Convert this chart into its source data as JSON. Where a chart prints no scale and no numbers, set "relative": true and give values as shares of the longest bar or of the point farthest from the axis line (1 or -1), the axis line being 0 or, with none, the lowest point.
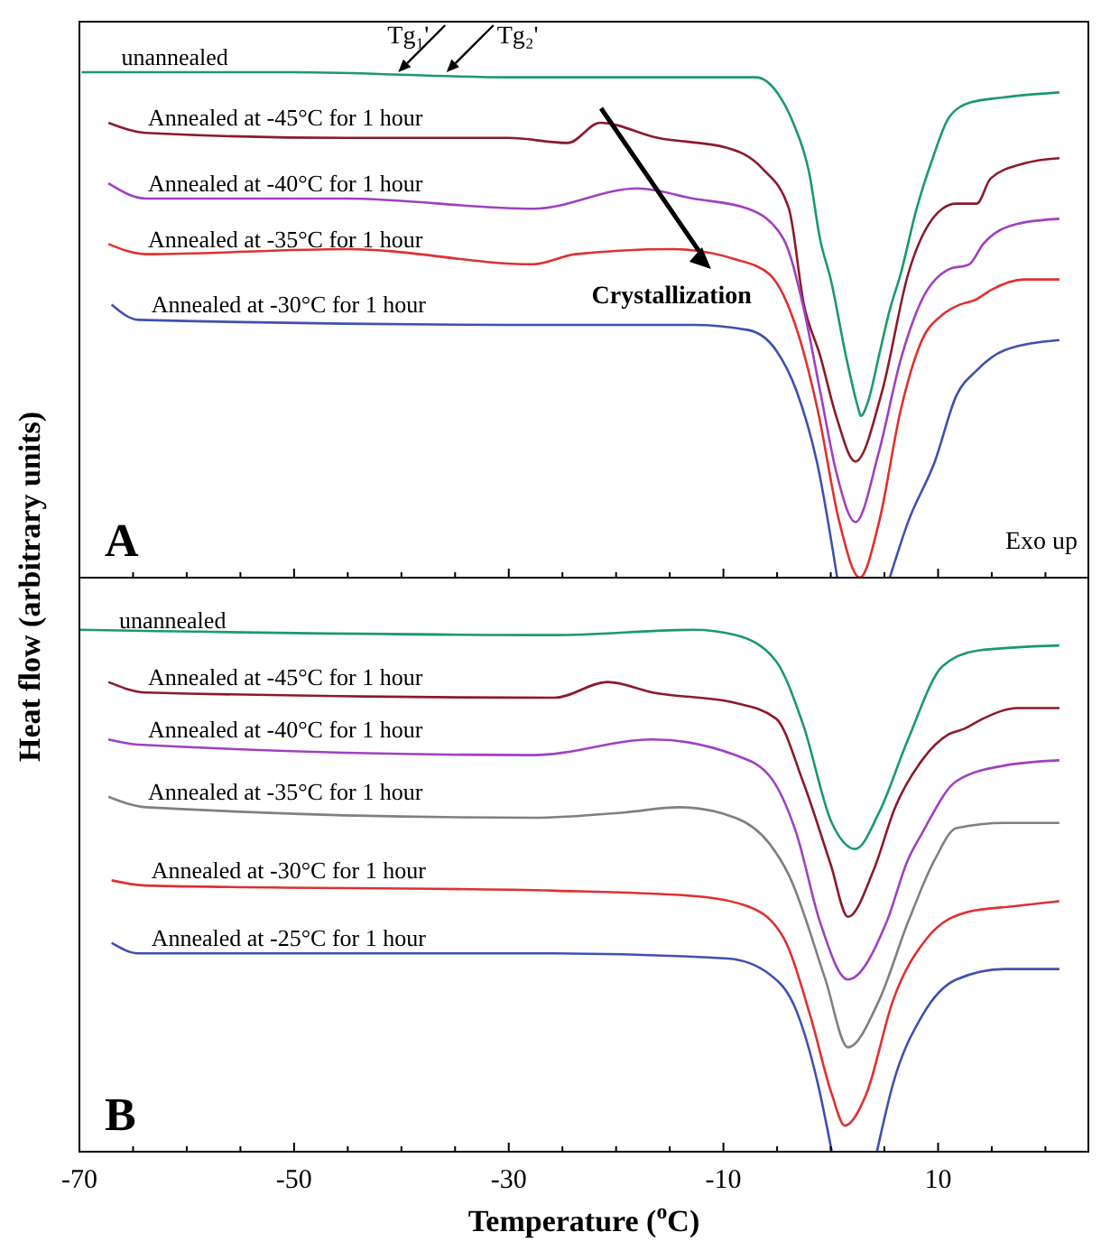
{
  "chart_data": [
    {
      "type": "line",
      "relative": true,
      "ylabel": "Heat flow (arbitrary units)",
      "xlim": [
        -70,
        24
      ],
      "xticks": [
        -70,
        {
          "value": -65,
          "label": null
        },
        {
          "value": -60,
          "label": null
        },
        {
          "value": -55,
          "label": null
        },
        {
          "value": -50,
          "label": null
        },
        {
          "value": -45,
          "label": null
        },
        {
          "value": -40,
          "label": null
        },
        {
          "value": -35,
          "label": null
        },
        {
          "value": -30,
          "label": null
        },
        {
          "value": -25,
          "label": null
        },
        {
          "value": -20,
          "label": null
        },
        {
          "value": -15,
          "label": null
        },
        {
          "value": -10,
          "label": null
        },
        {
          "value": -5,
          "label": null
        },
        {
          "value": 0,
          "label": null
        },
        {
          "value": 5,
          "label": null
        },
        {
          "value": 10,
          "label": null
        },
        {
          "value": 15,
          "label": null
        },
        {
          "value": 20,
          "label": null
        }
      ],
      "tick_labels": false,
      "annotations": [
        {
          "text": "Tg₁'",
          "x": -40.3,
          "y": 1.0
        },
        {
          "text": "Tg₂'",
          "x": -35.8,
          "y": 1.0
        },
        "A",
        "Exo up",
        "Crystallization"
      ],
      "series": [
        {
          "name": "unannealed",
          "color": "#1a9a6a",
          "x": [
            -69.8,
            -50,
            -30,
            -10,
            -7,
            -5,
            -3.5,
            -2,
            -1,
            0,
            1.5,
            2.5,
            2.8,
            3.5,
            4.5,
            5.5,
            6.5,
            8,
            9.5,
            11,
            13,
            16,
            21.3
          ],
          "values": [
            1.0,
            1.0,
            0.99,
            0.99,
            0.99,
            0.96,
            0.9,
            0.8,
            0.67,
            0.59,
            0.43,
            0.34,
            0.32,
            0.35,
            0.44,
            0.53,
            0.6,
            0.73,
            0.83,
            0.91,
            0.94,
            0.95,
            0.96
          ]
        },
        {
          "name": "Annealed at -45°C for 1 hour",
          "color": "#8b1a2a",
          "x": [
            -67.3,
            -63.8,
            -45,
            -30,
            -24.5,
            -21.5,
            -16.1,
            -9.6,
            -6.4,
            -3.9,
            -2.5,
            -1,
            0.5,
            2.3,
            4.8,
            7.2,
            10.4,
            11.7,
            13.6,
            14.9,
            18.1,
            21.3
          ],
          "values": [
            0.9,
            0.88,
            0.87,
            0.87,
            0.86,
            0.9,
            0.87,
            0.85,
            0.81,
            0.73,
            0.54,
            0.44,
            0.32,
            0.23,
            0.37,
            0.6,
            0.73,
            0.74,
            0.74,
            0.79,
            0.82,
            0.83
          ]
        },
        {
          "name": "Annealed at -40°C for 1 hour",
          "color": "#a040c0",
          "x": [
            -67.3,
            -63.8,
            -45.2,
            -27.7,
            -18,
            -12.8,
            -7.7,
            -4.4,
            -2.6,
            -1,
            0.5,
            2.3,
            4.5,
            6.5,
            8.5,
            11,
            12.9,
            14.2,
            17.4,
            21.3
          ],
          "values": [
            0.78,
            0.75,
            0.75,
            0.73,
            0.77,
            0.75,
            0.73,
            0.67,
            0.54,
            0.37,
            0.21,
            0.11,
            0.25,
            0.43,
            0.55,
            0.61,
            0.62,
            0.66,
            0.7,
            0.71
          ]
        },
        {
          "name": "Annealed at -35°C for 1 hour",
          "color": "#e03030",
          "x": [
            -67.3,
            -63.8,
            -45,
            -27.7,
            -23.8,
            -14.8,
            -8.9,
            -5.7,
            -3,
            -1.2,
            0.8,
            2.7,
            4.5,
            6.5,
            8.5,
            10.4,
            12,
            13.5,
            15,
            18,
            21.3
          ],
          "values": [
            0.66,
            0.64,
            0.65,
            0.62,
            0.64,
            0.65,
            0.63,
            0.6,
            0.48,
            0.33,
            0.11,
            0,
            0.11,
            0.33,
            0.47,
            0.52,
            0.54,
            0.55,
            0.57,
            0.59,
            0.59
          ]
        },
        {
          "name": "Annealed at -30°C for 1 hour",
          "color": "#4050b0",
          "x": [
            -67,
            -64.5,
            -25.7,
            -12.8,
            -7.7,
            -5.1,
            -3.2,
            -1.2,
            0.6,
            3,
            5.5,
            7.2,
            9.7,
            11.7,
            13.6,
            16.2,
            21.3
          ],
          "values": [
            0.54,
            0.51,
            0.5,
            0.5,
            0.49,
            0.45,
            0.37,
            0.22,
            0,
            null,
            0,
            0.11,
            0.23,
            0.36,
            0.41,
            0.45,
            0.47
          ]
        }
      ]
    },
    {
      "type": "line",
      "relative": true,
      "xlabel": "Temperature ($^{o}$C)",
      "xlim": [
        -70,
        24
      ],
      "xticks": [
        -70,
        {
          "value": -65,
          "label": null
        },
        {
          "value": -60,
          "label": null
        },
        {
          "value": -55,
          "label": null
        },
        -50,
        {
          "value": -45,
          "label": null
        },
        {
          "value": -40,
          "label": null
        },
        {
          "value": -35,
          "label": null
        },
        -30,
        {
          "value": -25,
          "label": null
        },
        {
          "value": -20,
          "label": null
        },
        {
          "value": -15,
          "label": null
        },
        -10,
        {
          "value": -5,
          "label": null
        },
        {
          "value": 0,
          "label": null
        },
        {
          "value": 5,
          "label": null
        },
        10,
        {
          "value": 15,
          "label": null
        },
        {
          "value": 20,
          "label": null
        }
      ],
      "tick_labels": "x",
      "annotations": [
        "B"
      ],
      "series": [
        {
          "name": "unannealed",
          "color": "#1a9a6a",
          "x": [
            -70,
            -25.7,
            -12.8,
            -8.9,
            -5.1,
            -2.6,
            0.1,
            2.3,
            4.5,
            7.2,
            10.4,
            13.6,
            21.3
          ],
          "values": [
            1.0,
            0.99,
            1.0,
            0.99,
            0.94,
            0.82,
            0.63,
            0.58,
            0.65,
            0.79,
            0.93,
            0.96,
            0.97
          ]
        },
        {
          "name": "Annealed at -45°C for 1 hour",
          "color": "#8b1a2a",
          "x": [
            -67.3,
            -63.8,
            -25.7,
            -20.8,
            -16.6,
            -8.9,
            -5.1,
            -2.6,
            0,
            1.6,
            4,
            6,
            8.5,
            11,
            12.4,
            14.2,
            17.4,
            21.3
          ],
          "values": [
            0.9,
            0.88,
            0.87,
            0.9,
            0.88,
            0.86,
            0.83,
            0.71,
            0.55,
            0.45,
            0.54,
            0.66,
            0.75,
            0.8,
            0.81,
            0.83,
            0.85,
            0.85
          ]
        },
        {
          "name": "Annealed at -40°C for 1 hour",
          "color": "#a040c0",
          "x": [
            -67.3,
            -64.5,
            -27.7,
            -16.6,
            -8.9,
            -5.7,
            -3.2,
            -1,
            1.6,
            5.2,
            7.2,
            8.5,
            11.7,
            16.2,
            21.3
          ],
          "values": [
            0.79,
            0.78,
            0.76,
            0.79,
            0.76,
            0.72,
            0.61,
            0.44,
            0.33,
            0.44,
            0.56,
            0.61,
            0.71,
            0.74,
            0.75
          ]
        },
        {
          "name": "Annealed at -35°C for 1 hour",
          "color": "#808080",
          "x": [
            -67.3,
            -63.8,
            -27.7,
            -19.3,
            -14.1,
            -8.9,
            -5.7,
            -3.9,
            -0.5,
            1.6,
            4.5,
            7.2,
            9.7,
            11.7,
            16.2,
            21.3
          ],
          "values": [
            0.68,
            0.66,
            0.64,
            0.65,
            0.66,
            0.64,
            0.59,
            0.53,
            0.33,
            0.2,
            0.29,
            0.44,
            0.56,
            0.62,
            0.63,
            0.63
          ]
        },
        {
          "name": "Annealed at -30°C for 1 hour",
          "color": "#e03030",
          "x": [
            -67,
            -63.8,
            -25.7,
            -12.8,
            -7.7,
            -4.4,
            -1.9,
            0.1,
            1.3,
            3.3,
            5.8,
            9,
            12.9,
            16.9,
            21.3
          ],
          "values": [
            0.52,
            0.51,
            0.5,
            0.49,
            0.47,
            0.41,
            0.26,
            0.11,
            0.05,
            0.11,
            0.29,
            0.41,
            0.46,
            0.47,
            0.48
          ]
        },
        {
          "name": "Annealed at -25°C for 1 hour",
          "color": "#4050b0",
          "x": [
            -67,
            -64.5,
            -25.7,
            -9.6,
            -5.7,
            -3.2,
            -1.2,
            0.1,
            2.2,
            4.3,
            5.8,
            8.5,
            11.7,
            16.2,
            21.3
          ],
          "values": [
            0.4,
            0.38,
            0.38,
            0.37,
            0.34,
            0.27,
            0.13,
            0,
            null,
            0,
            0.13,
            0.26,
            0.33,
            0.35,
            0.35
          ]
        }
      ]
    }
  ]
}
